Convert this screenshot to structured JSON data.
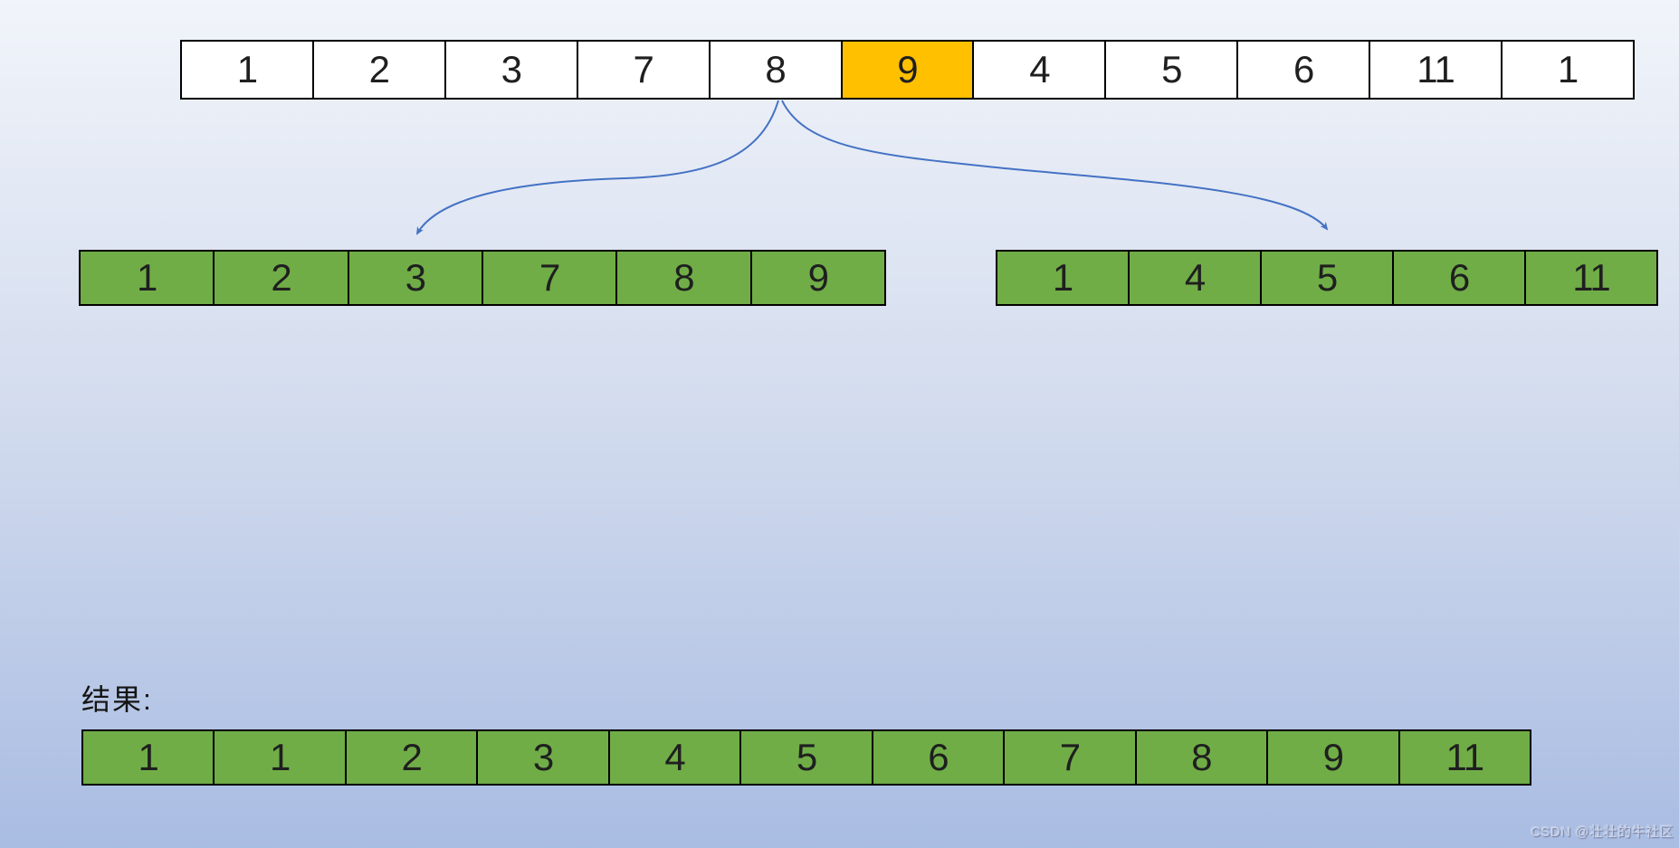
{
  "background": {
    "gradient_top": "#f1f4fa",
    "gradient_middle": "#d3dcee",
    "gradient_bottom": "#a9bce2"
  },
  "colors": {
    "cell_white": "#ffffff",
    "cell_green": "#70AD47",
    "highlight_orange": "#FFC000",
    "cell_border": "#000000",
    "arrow_blue": "#4472C4",
    "text": "#1f1f1f"
  },
  "top_array": {
    "values": [
      "1",
      "2",
      "3",
      "7",
      "8",
      "9",
      "4",
      "5",
      "6",
      "11",
      "1"
    ],
    "highlight_index": 5,
    "highlight_value": "9"
  },
  "left_subarray": {
    "values": [
      "1",
      "2",
      "3",
      "7",
      "8",
      "9"
    ]
  },
  "right_subarray": {
    "values": [
      "1",
      "4",
      "5",
      "6",
      "11"
    ]
  },
  "result": {
    "label": "结果:",
    "values": [
      "1",
      "1",
      "2",
      "3",
      "4",
      "5",
      "6",
      "7",
      "8",
      "9",
      "11"
    ]
  },
  "arrows": [
    {
      "name": "split-left-arrow",
      "from": "below top-array cell 8",
      "to": "left-subarray cell 3"
    },
    {
      "name": "split-right-arrow",
      "from": "below top-array cell 8",
      "to": "right-subarray cell 5"
    }
  ],
  "watermark": {
    "text": "CSDN @壮壮的牛社区"
  }
}
